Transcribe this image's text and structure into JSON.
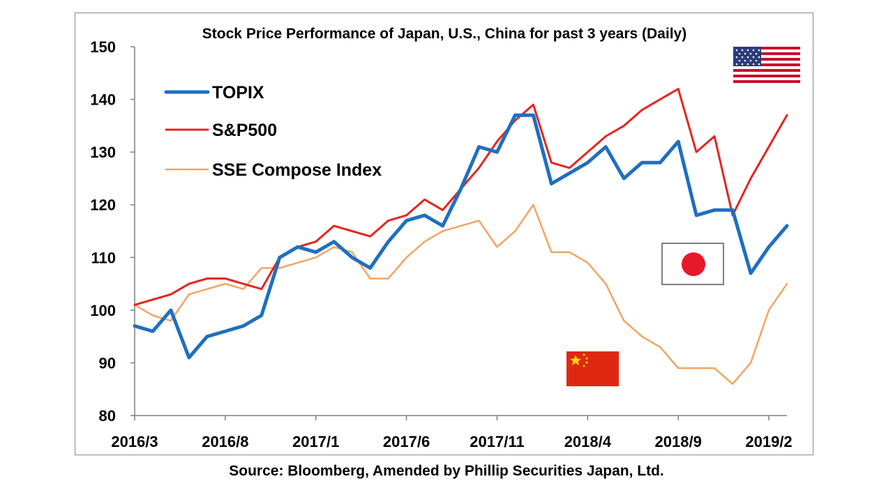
{
  "chart_data": {
    "type": "line",
    "title": "Stock Price Performance of Japan, U.S., China for past 3 years (Daily)",
    "xlabel": "",
    "ylabel": "",
    "ylim": [
      80,
      150
    ],
    "yticks": [
      80,
      90,
      100,
      110,
      120,
      130,
      140,
      150
    ],
    "xlim": [
      "2016/3",
      "2019/3"
    ],
    "xticks": [
      "2016/3",
      "2016/8",
      "2017/1",
      "2017/6",
      "2017/11",
      "2018/4",
      "2018/9",
      "2019/2"
    ],
    "grid": false,
    "legend_position": "top-left",
    "x": [
      "2016/3",
      "2016/4",
      "2016/5",
      "2016/6",
      "2016/7",
      "2016/8",
      "2016/9",
      "2016/10",
      "2016/11",
      "2016/12",
      "2017/1",
      "2017/2",
      "2017/3",
      "2017/4",
      "2017/5",
      "2017/6",
      "2017/7",
      "2017/8",
      "2017/9",
      "2017/10",
      "2017/11",
      "2017/12",
      "2018/1",
      "2018/2",
      "2018/3",
      "2018/4",
      "2018/5",
      "2018/6",
      "2018/7",
      "2018/8",
      "2018/9",
      "2018/10",
      "2018/11",
      "2018/12",
      "2019/1",
      "2019/2",
      "2019/3"
    ],
    "series": [
      {
        "name": "TOPIX",
        "color": "#1f6fbf",
        "values": [
          97,
          96,
          100,
          91,
          95,
          96,
          97,
          99,
          110,
          112,
          111,
          113,
          110,
          108,
          113,
          117,
          118,
          116,
          123,
          131,
          130,
          137,
          137,
          124,
          126,
          128,
          131,
          125,
          128,
          128,
          132,
          118,
          119,
          119,
          107,
          112,
          116
        ]
      },
      {
        "name": "S&P500",
        "color": "#e8231f",
        "values": [
          101,
          102,
          103,
          105,
          106,
          106,
          105,
          104,
          110,
          112,
          113,
          116,
          115,
          114,
          117,
          118,
          121,
          119,
          123,
          127,
          132,
          136,
          139,
          128,
          127,
          130,
          133,
          135,
          138,
          140,
          142,
          130,
          133,
          118,
          125,
          131,
          137
        ]
      },
      {
        "name": "SSE Compose Index",
        "color": "#f4a460",
        "values": [
          101,
          99,
          98,
          103,
          104,
          105,
          104,
          108,
          108,
          109,
          110,
          112,
          111,
          106,
          106,
          110,
          113,
          115,
          116,
          117,
          112,
          115,
          120,
          111,
          111,
          109,
          105,
          98,
          95,
          93,
          89,
          89,
          89,
          86,
          90,
          100,
          105
        ]
      }
    ]
  },
  "source": "Source: Bloomberg, Amended by Phillip Securities Japan, Ltd.",
  "flags": {
    "us": "us-flag",
    "japan": "japan-flag",
    "china": "china-flag"
  }
}
